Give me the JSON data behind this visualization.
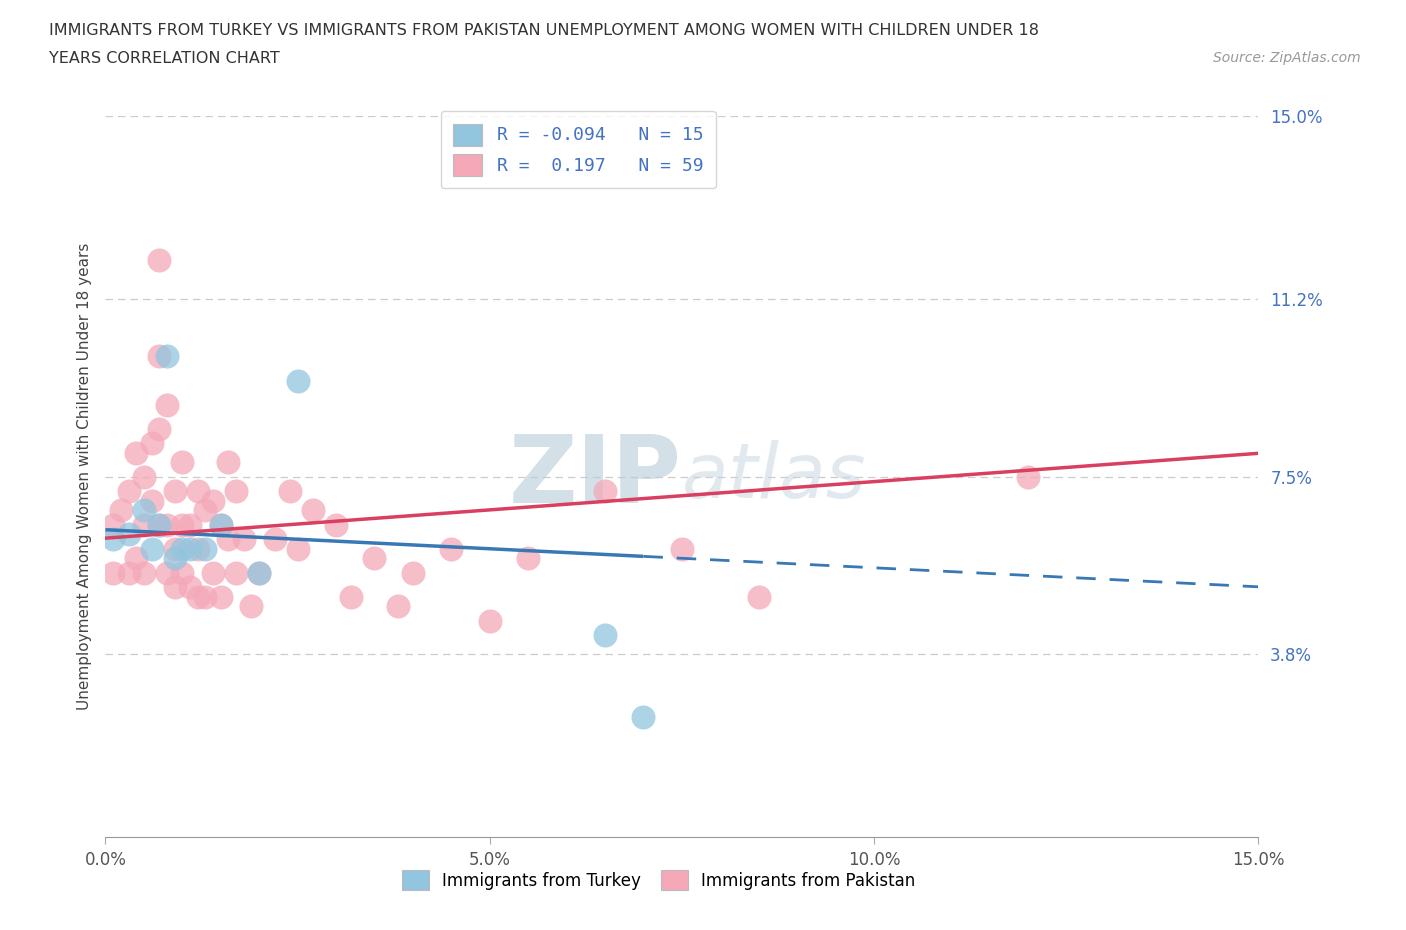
{
  "title_line1": "IMMIGRANTS FROM TURKEY VS IMMIGRANTS FROM PAKISTAN UNEMPLOYMENT AMONG WOMEN WITH CHILDREN UNDER 18",
  "title_line2": "YEARS CORRELATION CHART",
  "source": "Source: ZipAtlas.com",
  "ylabel": "Unemployment Among Women with Children Under 18 years",
  "xmin": 0.0,
  "xmax": 0.15,
  "ymin": 0.0,
  "ymax": 0.15,
  "ytick_vals": [
    0.038,
    0.075,
    0.112,
    0.15
  ],
  "ytick_labels": [
    "3.8%",
    "7.5%",
    "11.2%",
    "15.0%"
  ],
  "xtick_vals": [
    0.0,
    0.05,
    0.1,
    0.15
  ],
  "xtick_labels": [
    "0.0%",
    "5.0%",
    "10.0%",
    "15.0%"
  ],
  "hlines": [
    0.038,
    0.075,
    0.112,
    0.15
  ],
  "turkey_R": -0.094,
  "turkey_N": 15,
  "pakistan_R": 0.197,
  "pakistan_N": 59,
  "turkey_scatter_color": "#92c5de",
  "pakistan_scatter_color": "#f4a8b8",
  "turkey_line_color": "#3878b4",
  "pakistan_line_color": "#d94060",
  "turkey_x": [
    0.001,
    0.003,
    0.005,
    0.006,
    0.007,
    0.008,
    0.009,
    0.01,
    0.011,
    0.013,
    0.015,
    0.02,
    0.025,
    0.065,
    0.07
  ],
  "turkey_y": [
    0.062,
    0.063,
    0.068,
    0.06,
    0.065,
    0.1,
    0.058,
    0.06,
    0.06,
    0.06,
    0.065,
    0.055,
    0.095,
    0.042,
    0.025
  ],
  "pakistan_x": [
    0.001,
    0.001,
    0.002,
    0.003,
    0.003,
    0.004,
    0.004,
    0.005,
    0.005,
    0.005,
    0.006,
    0.006,
    0.007,
    0.007,
    0.007,
    0.007,
    0.008,
    0.008,
    0.008,
    0.009,
    0.009,
    0.009,
    0.01,
    0.01,
    0.01,
    0.011,
    0.011,
    0.012,
    0.012,
    0.012,
    0.013,
    0.013,
    0.014,
    0.014,
    0.015,
    0.015,
    0.016,
    0.016,
    0.017,
    0.017,
    0.018,
    0.019,
    0.02,
    0.022,
    0.024,
    0.025,
    0.027,
    0.03,
    0.032,
    0.035,
    0.038,
    0.04,
    0.045,
    0.05,
    0.055,
    0.065,
    0.075,
    0.085,
    0.12
  ],
  "pakistan_y": [
    0.065,
    0.055,
    0.068,
    0.072,
    0.055,
    0.08,
    0.058,
    0.075,
    0.065,
    0.055,
    0.07,
    0.082,
    0.12,
    0.1,
    0.085,
    0.065,
    0.09,
    0.065,
    0.055,
    0.072,
    0.06,
    0.052,
    0.078,
    0.065,
    0.055,
    0.065,
    0.052,
    0.072,
    0.06,
    0.05,
    0.068,
    0.05,
    0.07,
    0.055,
    0.065,
    0.05,
    0.078,
    0.062,
    0.072,
    0.055,
    0.062,
    0.048,
    0.055,
    0.062,
    0.072,
    0.06,
    0.068,
    0.065,
    0.05,
    0.058,
    0.048,
    0.055,
    0.06,
    0.045,
    0.058,
    0.072,
    0.06,
    0.05,
    0.075
  ],
  "watermark_zip": "ZIP",
  "watermark_atlas": "atlas"
}
